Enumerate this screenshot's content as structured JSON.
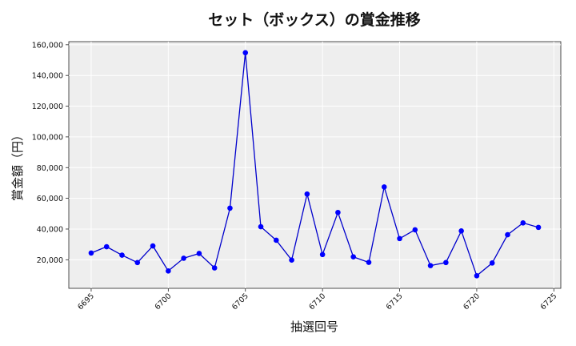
{
  "chart_data": {
    "type": "line",
    "title": "セット（ボックス）の賞金推移",
    "xlabel": "抽選回号",
    "ylabel": "賞金額（円）",
    "x": [
      6695,
      6696,
      6697,
      6698,
      6699,
      6700,
      6701,
      6702,
      6703,
      6704,
      6705,
      6706,
      6707,
      6708,
      6709,
      6710,
      6711,
      6712,
      6713,
      6714,
      6715,
      6716,
      6717,
      6718,
      6719,
      6720,
      6721,
      6722,
      6723,
      6724
    ],
    "series": [
      {
        "values": [
          24400,
          28500,
          23000,
          18200,
          29000,
          12700,
          21000,
          24100,
          14700,
          53600,
          154800,
          41500,
          32700,
          19800,
          62800,
          23400,
          50800,
          21900,
          18300,
          67400,
          33800,
          39500,
          16200,
          18200,
          38800,
          9600,
          17900,
          36300,
          44000,
          41100
        ]
      }
    ],
    "xlim": [
      6693.55,
      6725.45
    ],
    "ylim": [
      1400,
      162000
    ],
    "xticks": [
      "6695",
      "6700",
      "6705",
      "6710",
      "6715",
      "6720",
      "6725"
    ],
    "yticks": [
      "20,000",
      "40,000",
      "60,000",
      "80,000",
      "100,000",
      "120,000",
      "140,000",
      "160,000"
    ],
    "grid": true,
    "colors": {
      "line": "#0000cc",
      "marker": "#0000ff",
      "plot_bg": "#eeeeee",
      "grid": "#ffffff"
    }
  }
}
